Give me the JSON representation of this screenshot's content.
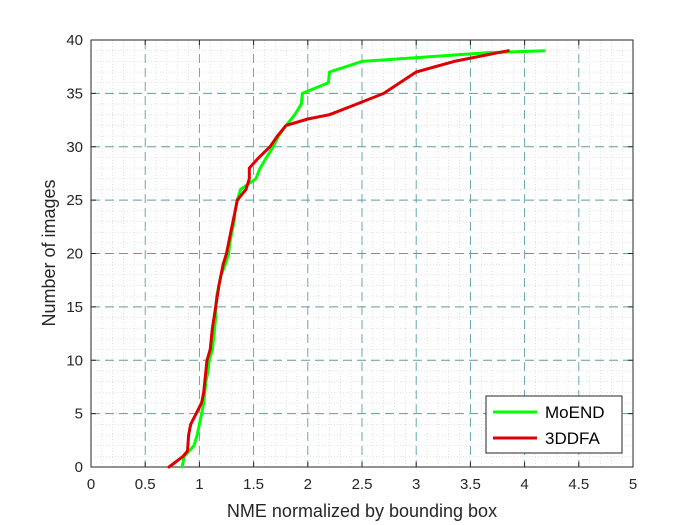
{
  "chart_data": {
    "type": "line",
    "xlabel": "NME normalized by bounding box",
    "ylabel": "Number of images",
    "xlim": [
      0,
      5
    ],
    "ylim": [
      0,
      40
    ],
    "xticks": [
      "0",
      "0.5",
      "1",
      "1.5",
      "2",
      "2.5",
      "3",
      "3.5",
      "4",
      "4.5",
      "5"
    ],
    "yticks": [
      "0",
      "5",
      "10",
      "15",
      "20",
      "25",
      "30",
      "35",
      "40"
    ],
    "grid": "on (dashed major, dotted minor)",
    "legend_position": "bottom-right",
    "series": [
      {
        "name": "MoEND",
        "color": "#00ff00",
        "points": [
          [
            0.84,
            0
          ],
          [
            0.86,
            1
          ],
          [
            0.95,
            2
          ],
          [
            0.98,
            3
          ],
          [
            1.0,
            4
          ],
          [
            1.02,
            5
          ],
          [
            1.04,
            6
          ],
          [
            1.05,
            7
          ],
          [
            1.06,
            8
          ],
          [
            1.08,
            9
          ],
          [
            1.09,
            10
          ],
          [
            1.12,
            11
          ],
          [
            1.13,
            12
          ],
          [
            1.14,
            13
          ],
          [
            1.15,
            14
          ],
          [
            1.15,
            15
          ],
          [
            1.16,
            16
          ],
          [
            1.18,
            17
          ],
          [
            1.2,
            18
          ],
          [
            1.24,
            19
          ],
          [
            1.27,
            20
          ],
          [
            1.28,
            21
          ],
          [
            1.3,
            22
          ],
          [
            1.32,
            23
          ],
          [
            1.33,
            24
          ],
          [
            1.35,
            25
          ],
          [
            1.38,
            26
          ],
          [
            1.52,
            27
          ],
          [
            1.56,
            28
          ],
          [
            1.62,
            29
          ],
          [
            1.68,
            30
          ],
          [
            1.73,
            31
          ],
          [
            1.8,
            32
          ],
          [
            1.88,
            33
          ],
          [
            1.94,
            34
          ],
          [
            1.95,
            35
          ],
          [
            2.19,
            36
          ],
          [
            2.2,
            37
          ],
          [
            2.5,
            38
          ],
          [
            3.65,
            38.8
          ],
          [
            4.18,
            39
          ]
        ]
      },
      {
        "name": "3DDFA",
        "color": "#dd0000",
        "points": [
          [
            0.72,
            0
          ],
          [
            0.85,
            1
          ],
          [
            0.89,
            1.5
          ],
          [
            0.9,
            3
          ],
          [
            0.92,
            4
          ],
          [
            1.02,
            6
          ],
          [
            1.04,
            7
          ],
          [
            1.06,
            9
          ],
          [
            1.07,
            10
          ],
          [
            1.1,
            11
          ],
          [
            1.12,
            13
          ],
          [
            1.15,
            15
          ],
          [
            1.18,
            17
          ],
          [
            1.22,
            19
          ],
          [
            1.25,
            20
          ],
          [
            1.29,
            22
          ],
          [
            1.33,
            24
          ],
          [
            1.35,
            25
          ],
          [
            1.43,
            26
          ],
          [
            1.46,
            27
          ],
          [
            1.46,
            28
          ],
          [
            1.55,
            29
          ],
          [
            1.65,
            30
          ],
          [
            1.72,
            31
          ],
          [
            1.8,
            32
          ],
          [
            2.0,
            32.6
          ],
          [
            2.2,
            33
          ],
          [
            2.45,
            34
          ],
          [
            2.7,
            35
          ],
          [
            3.0,
            37
          ],
          [
            3.35,
            38
          ],
          [
            3.85,
            39
          ]
        ]
      }
    ]
  }
}
